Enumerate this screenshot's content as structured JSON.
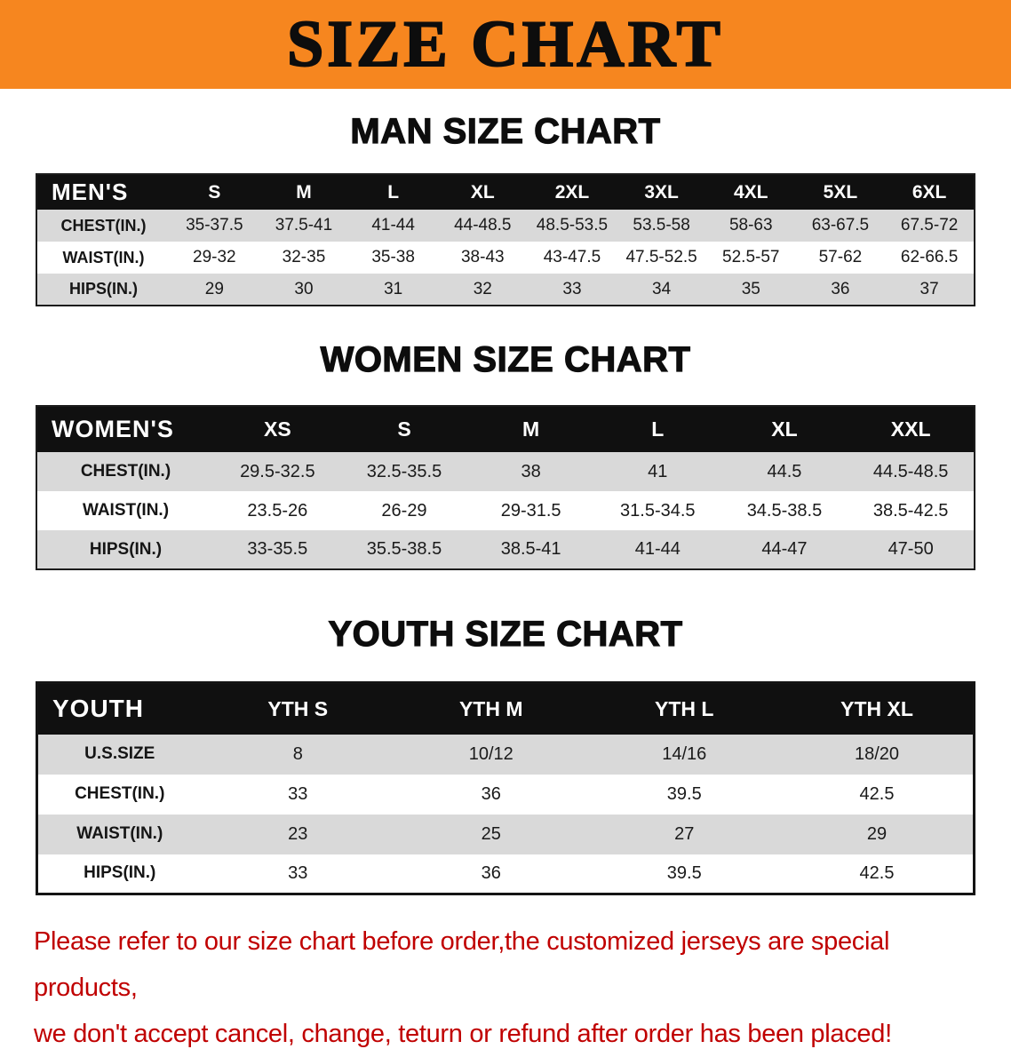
{
  "banner": {
    "title": "SIZE CHART",
    "bg_color": "#f6861f"
  },
  "men": {
    "heading": "MAN SIZE CHART",
    "table": {
      "header": [
        "MEN'S",
        "S",
        "M",
        "L",
        "XL",
        "2XL",
        "3XL",
        "4XL",
        "5XL",
        "6XL"
      ],
      "rows": [
        [
          "CHEST(IN.)",
          "35-37.5",
          "37.5-41",
          "41-44",
          "44-48.5",
          "48.5-53.5",
          "53.5-58",
          "58-63",
          "63-67.5",
          "67.5-72"
        ],
        [
          "WAIST(IN.)",
          "29-32",
          "32-35",
          "35-38",
          "38-43",
          "43-47.5",
          "47.5-52.5",
          "52.5-57",
          "57-62",
          "62-66.5"
        ],
        [
          "HIPS(IN.)",
          "29",
          "30",
          "31",
          "32",
          "33",
          "34",
          "35",
          "36",
          "37"
        ]
      ]
    }
  },
  "women": {
    "heading": "WOMEN SIZE CHART",
    "table": {
      "header": [
        "WOMEN'S",
        "XS",
        "S",
        "M",
        "L",
        "XL",
        "XXL"
      ],
      "rows": [
        [
          "CHEST(IN.)",
          "29.5-32.5",
          "32.5-35.5",
          "38",
          "41",
          "44.5",
          "44.5-48.5"
        ],
        [
          "WAIST(IN.)",
          "23.5-26",
          "26-29",
          "29-31.5",
          "31.5-34.5",
          "34.5-38.5",
          "38.5-42.5"
        ],
        [
          "HIPS(IN.)",
          "33-35.5",
          "35.5-38.5",
          "38.5-41",
          "41-44",
          "44-47",
          "47-50"
        ]
      ]
    }
  },
  "youth": {
    "heading": "YOUTH SIZE CHART",
    "table": {
      "header": [
        "YOUTH",
        "YTH S",
        "YTH M",
        "YTH L",
        "YTH XL"
      ],
      "rows": [
        [
          "U.S.SIZE",
          "8",
          "10/12",
          "14/16",
          "18/20"
        ],
        [
          "CHEST(IN.)",
          "33",
          "36",
          "39.5",
          "42.5"
        ],
        [
          "WAIST(IN.)",
          "23",
          "25",
          "27",
          "29"
        ],
        [
          "HIPS(IN.)",
          "33",
          "36",
          "39.5",
          "42.5"
        ]
      ]
    }
  },
  "notice": {
    "line1": "Please refer to our size chart before order,the customized jerseys are special products,",
    "line2": "we don't accept cancel, change, teturn or refund after order has been placed!",
    "color": "#c00000"
  }
}
